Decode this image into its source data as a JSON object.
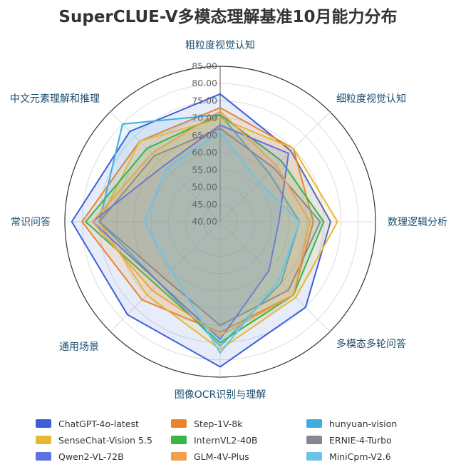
{
  "chart_data": {
    "type": "radar",
    "title": "SuperCLUE-V多模态理解基准10月能力分布",
    "axes": [
      "粗粒度视觉认知",
      "细粒度视觉认知",
      "数理逻辑分析",
      "多模态多轮问答",
      "图像OCR识别与理解",
      "通用场景",
      "常识问答",
      "中文元素理解和推理"
    ],
    "r_range": [
      40,
      85
    ],
    "ticks": [
      "40.00",
      "45.00",
      "50.00",
      "55.00",
      "60.00",
      "65.00",
      "70.00",
      "75.00",
      "80.00",
      "85.00"
    ],
    "legend_position": "bottom",
    "series": [
      {
        "name": "ChatGPT-4o-latest",
        "color": "#3d5fd6",
        "values": [
          77,
          69,
          72,
          75,
          82,
          78,
          83,
          77
        ]
      },
      {
        "name": "Step-1V-8k",
        "color": "#e8852b",
        "values": [
          73,
          70,
          67,
          70,
          72,
          72,
          80,
          73
        ]
      },
      {
        "name": "hunyuan-vision",
        "color": "#3eaee0",
        "values": [
          71,
          60,
          63,
          65,
          76,
          65,
          75,
          80
        ]
      },
      {
        "name": "SenseChat-Vision 5.5",
        "color": "#e6b834",
        "values": [
          70,
          70,
          74,
          71,
          77,
          70,
          75,
          73
        ]
      },
      {
        "name": "InternVL2-40B",
        "color": "#39b54a",
        "values": [
          71,
          65,
          70,
          70,
          75,
          66,
          79,
          70
        ]
      },
      {
        "name": "ERNIE-4-Turbo",
        "color": "#85898f",
        "values": [
          67,
          62,
          69,
          68,
          70,
          63,
          75,
          67
        ]
      },
      {
        "name": "Qwen2-VL-72B",
        "color": "#5d72e0",
        "values": [
          68,
          68,
          57,
          60,
          74,
          65,
          77,
          63
        ]
      },
      {
        "name": "GLM-4V-Plus",
        "color": "#f0a04a",
        "values": [
          72,
          63,
          66,
          70,
          73,
          68,
          77,
          68
        ]
      },
      {
        "name": "MiniCpm-V2.6",
        "color": "#6ac3ec",
        "values": [
          66,
          56,
          63,
          64,
          78,
          60,
          62,
          62
        ]
      }
    ]
  }
}
